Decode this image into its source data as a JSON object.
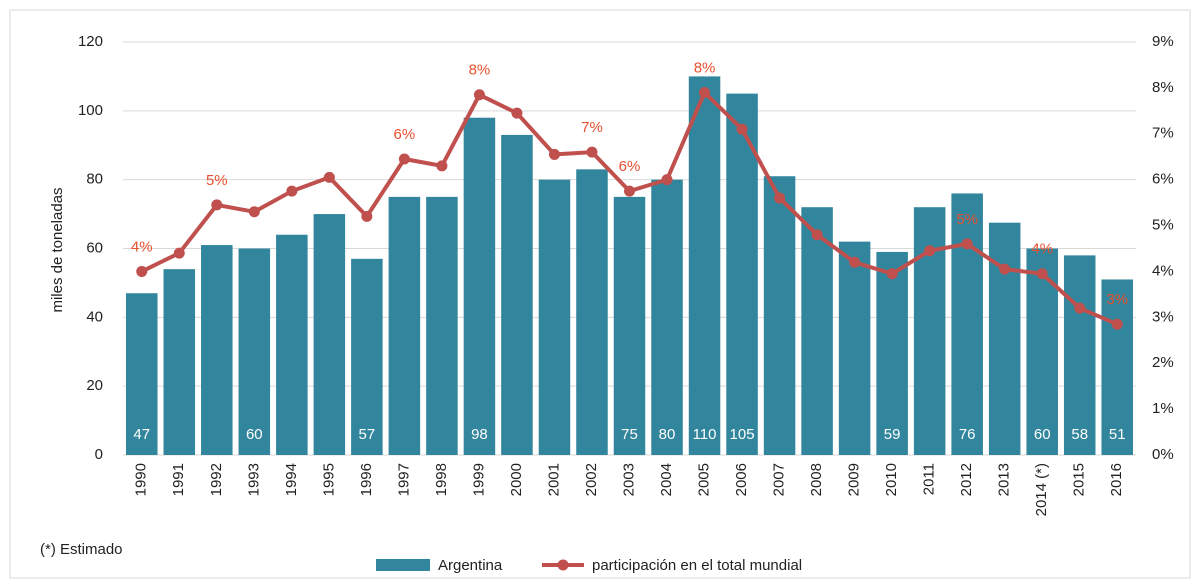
{
  "chart_data": {
    "type": "bar",
    "y_label": "miles de toneladas",
    "note": "(*) Estimado",
    "categories": [
      "1990",
      "1991",
      "1992",
      "1993",
      "1994",
      "1995",
      "1996",
      "1997",
      "1998",
      "1999",
      "2000",
      "2001",
      "2002",
      "2003",
      "2004",
      "2005",
      "2006",
      "2007",
      "2008",
      "2009",
      "2010",
      "2011",
      "2012",
      "2013",
      "2014 (*)",
      "2015",
      "2016"
    ],
    "series": [
      {
        "name": "Argentina",
        "type": "bar",
        "color": "#31859c",
        "values": [
          47,
          54,
          61,
          60,
          64,
          70,
          57,
          75,
          75,
          98,
          93,
          80,
          83,
          75,
          80,
          110,
          105,
          81,
          72,
          62,
          59,
          72,
          76,
          67.5,
          60,
          58,
          51
        ],
        "value_labels": [
          "47",
          null,
          null,
          "60",
          null,
          null,
          "57",
          null,
          null,
          "98",
          null,
          null,
          null,
          "75",
          "80",
          "110",
          "105",
          null,
          null,
          null,
          "59",
          null,
          "76",
          null,
          "60",
          "58",
          "51"
        ]
      },
      {
        "name": "participación en el total mundial",
        "type": "line",
        "axis": "y2",
        "color": "#c0504d",
        "values": [
          4.0,
          4.4,
          5.45,
          5.3,
          5.75,
          6.05,
          5.2,
          6.45,
          6.3,
          7.85,
          7.45,
          6.55,
          6.6,
          5.75,
          6.0,
          7.9,
          7.1,
          5.6,
          4.8,
          4.2,
          3.95,
          4.45,
          4.6,
          4.05,
          3.95,
          3.2,
          2.85
        ],
        "value_labels": [
          "4%",
          null,
          "5%",
          null,
          null,
          null,
          null,
          "6%",
          null,
          "8%",
          null,
          null,
          "7%",
          "6%",
          null,
          "8%",
          null,
          null,
          null,
          null,
          null,
          null,
          "5%",
          null,
          "4%",
          null,
          "3%"
        ]
      }
    ],
    "ylim": [
      0,
      120
    ],
    "yticks": [
      0,
      20,
      40,
      60,
      80,
      100,
      120
    ],
    "y2lim": [
      0,
      9
    ],
    "y2ticks": [
      {
        "value": 0,
        "label": "0%"
      },
      {
        "value": 1,
        "label": "1%"
      },
      {
        "value": 2,
        "label": "2%"
      },
      {
        "value": 3,
        "label": "3%"
      },
      {
        "value": 4,
        "label": "4%"
      },
      {
        "value": 5,
        "label": "5%"
      },
      {
        "value": 6,
        "label": "6%"
      },
      {
        "value": 7,
        "label": "7%"
      },
      {
        "value": 8,
        "label": "8%"
      },
      {
        "value": 9,
        "label": "9%"
      }
    ],
    "grid": true,
    "legend": "bottom"
  }
}
